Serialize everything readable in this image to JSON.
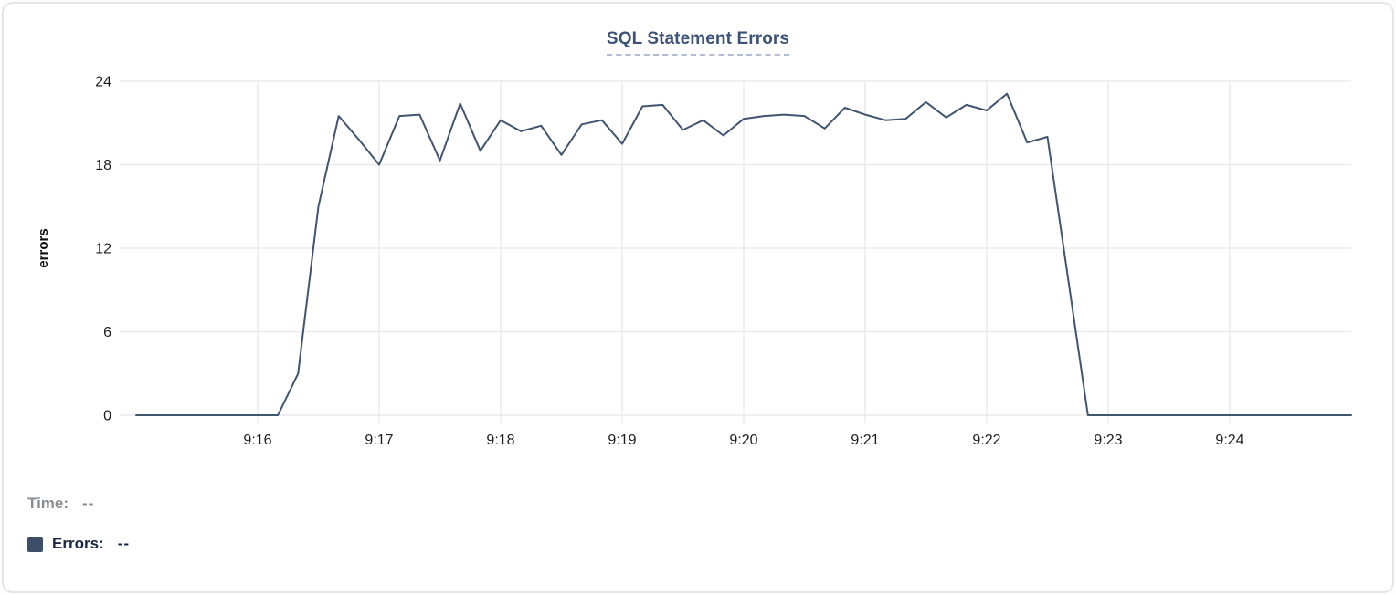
{
  "card": {
    "background": "#ffffff",
    "border_color": "#e4e5e9"
  },
  "chart_data": {
    "type": "line",
    "title": "SQL Statement Errors",
    "xlabel": "",
    "ylabel": "errors",
    "ylim": [
      0,
      24
    ],
    "y_ticks": [
      0,
      6,
      12,
      18,
      24
    ],
    "x_ticks": [
      "9:16",
      "9:17",
      "9:18",
      "9:19",
      "9:20",
      "9:21",
      "9:22",
      "9:23",
      "9:24"
    ],
    "xlim": [
      "9:15:00",
      "9:25:00"
    ],
    "grid": true,
    "legend_position": "bottom-left",
    "series": [
      {
        "name": "Errors",
        "color": "#415470",
        "x_start": "9:15:00",
        "interval_seconds": 10,
        "values": [
          0,
          0,
          0,
          0,
          0,
          0,
          0,
          0,
          3,
          15,
          21.5,
          19.8,
          18,
          21.5,
          21.6,
          18.3,
          22.4,
          19,
          21.2,
          20.4,
          20.8,
          18.7,
          20.9,
          21.2,
          19.5,
          22.2,
          22.3,
          20.5,
          21.2,
          20.1,
          21.3,
          21.5,
          21.6,
          21.5,
          20.6,
          22.1,
          21.6,
          21.2,
          21.3,
          22.5,
          21.4,
          22.3,
          21.9,
          23.1,
          19.6,
          20,
          10,
          0,
          0,
          0,
          0,
          0,
          0,
          0,
          0,
          0,
          0,
          0,
          0,
          0,
          0
        ]
      }
    ]
  },
  "legend": {
    "time_label": "Time:",
    "time_value": "--",
    "errors_label": "Errors:",
    "errors_value": "--",
    "swatch_color": "#3d4e67"
  },
  "colors": {
    "line": "#415470",
    "grid": "#ebebee",
    "axis_text": "#1c1c1e",
    "axis_title_text": "#101011",
    "title": "#3c5277",
    "title_underline": "#b2bcd2",
    "legend_time": "#8a8c92",
    "legend_errors": "#1b2547"
  }
}
